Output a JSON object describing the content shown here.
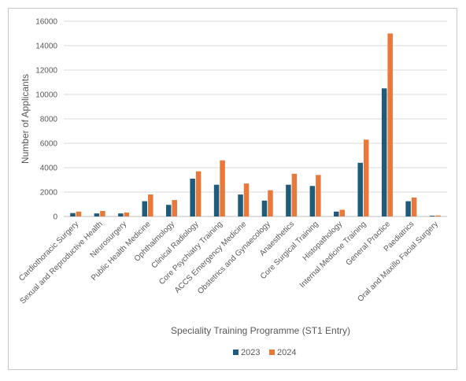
{
  "chart_data": {
    "type": "bar",
    "title": "",
    "xlabel": "Speciality Training Programme (ST1 Entry)",
    "ylabel": "Number of Applicants",
    "ylim": [
      0,
      16000
    ],
    "yticks": [
      0,
      2000,
      4000,
      6000,
      8000,
      10000,
      12000,
      14000,
      16000
    ],
    "grid": true,
    "legend_position": "bottom",
    "categories": [
      "Cardiothoracic Surgery",
      "Sexual and Reproductive Health",
      "Neurosurgery",
      "Public Health Medicine",
      "Ophthalmology",
      "Clinical Radiology",
      "Core Psychiatry Training",
      "ACCS Emergency Medicine",
      "Obstetrics and Gynaecology",
      "Anaesthetics",
      "Core Surgical Training",
      "Histopathology",
      "Internal Medicine Training",
      "General Practice",
      "Paediatrics",
      "Oral and Maxillo Facial Surgery"
    ],
    "series": [
      {
        "name": "2023",
        "color": "#1f5b7a",
        "values": [
          280,
          250,
          250,
          1250,
          950,
          3100,
          2600,
          1800,
          1300,
          2600,
          2500,
          400,
          4400,
          10500,
          1250,
          60
        ]
      },
      {
        "name": "2024",
        "color": "#e8793a",
        "values": [
          400,
          450,
          320,
          1800,
          1350,
          3700,
          4600,
          2700,
          2150,
          3500,
          3400,
          550,
          6300,
          15000,
          1550,
          80
        ]
      }
    ]
  }
}
